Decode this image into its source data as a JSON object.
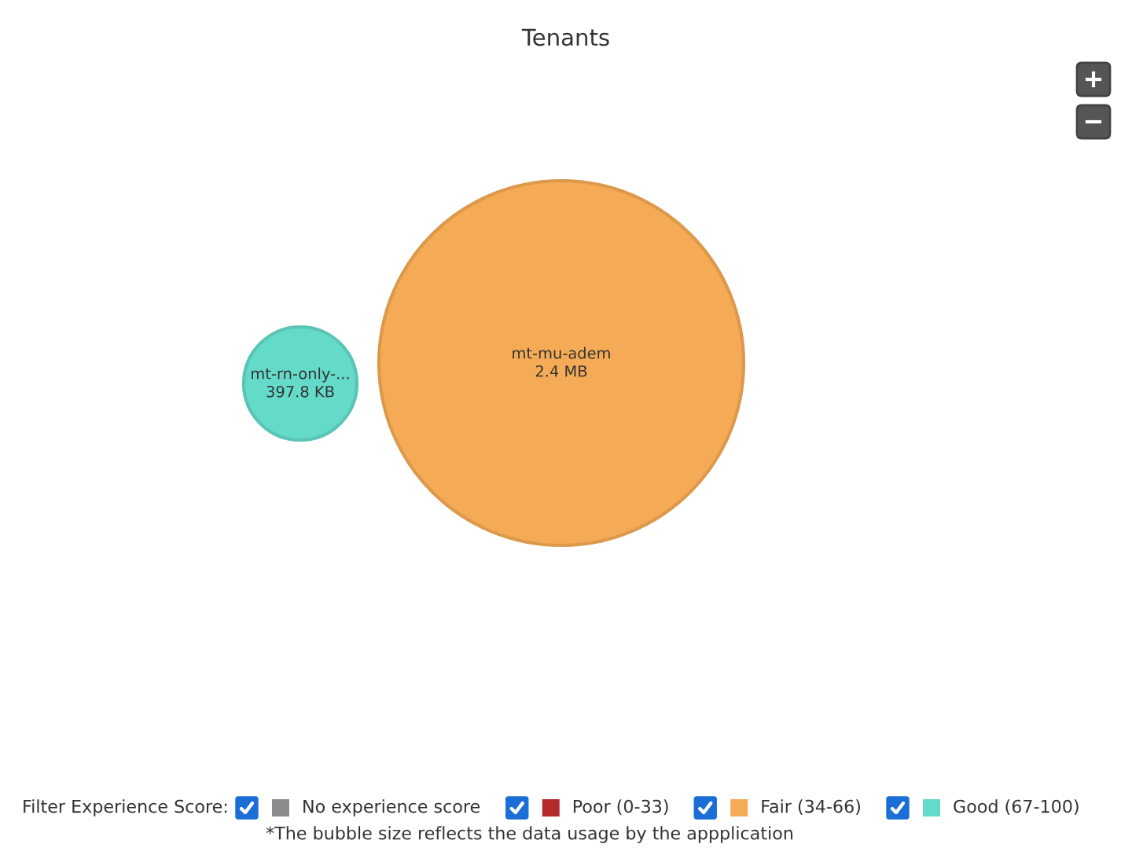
{
  "chart_data": {
    "type": "other",
    "title": "Tenants",
    "categories": [
      "mt-rn-only-...",
      "mt-mu-adem"
    ],
    "series": [
      {
        "name": "No experience score",
        "color": "#8c8c8c",
        "values": [
          null,
          null
        ]
      },
      {
        "name": "Poor (0-33)",
        "color": "#b52b2b",
        "values": [
          null,
          null
        ]
      },
      {
        "name": "Fair (34-66)",
        "color": "#f5aa55",
        "values": [
          null,
          2.4
        ],
        "value_labels": [
          null,
          "2.4 MB"
        ]
      },
      {
        "name": "Good (67-100)",
        "color": "#64dbc9",
        "values": [
          397.8,
          null
        ],
        "value_labels": [
          "397.8 KB",
          null
        ]
      }
    ],
    "legend": "bottom",
    "legend_title": "Filter Experience Score:",
    "annotations": [
      "*The bubble size reflects the data usage by the appplication"
    ]
  }
}
